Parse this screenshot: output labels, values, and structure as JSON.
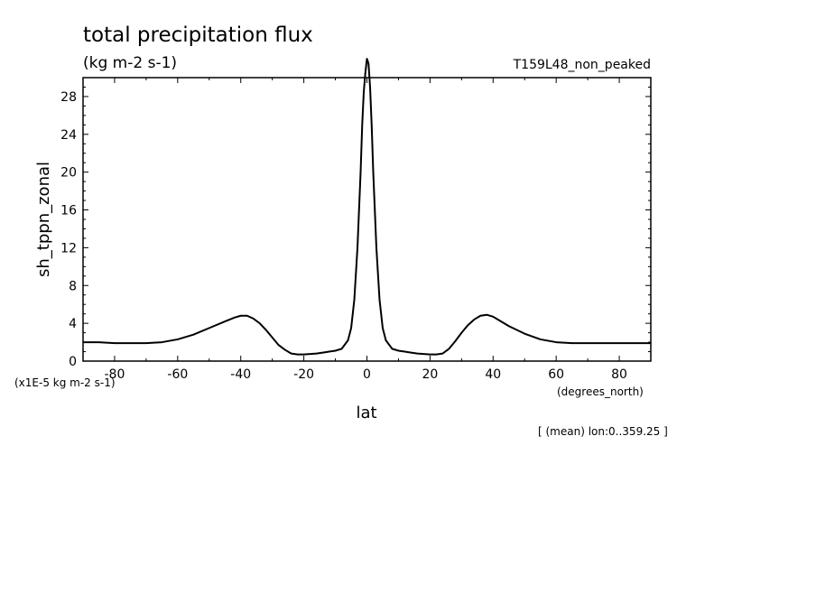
{
  "title": "total precipitation flux",
  "units": "(kg m-2 s-1)",
  "run_label": "T159L48_non_peaked",
  "y_axis_label": "sh_tppn_zonal",
  "y_scale_note": "(x1E-5 kg m-2 s-1)",
  "x_axis_label": "lat",
  "x_units_label": "(degrees_north)",
  "footer_note": "[ (mean) lon:0..359.25 ]",
  "chart_data": {
    "type": "line",
    "xlim": [
      -90,
      90
    ],
    "ylim": [
      0,
      30
    ],
    "x_ticks": [
      -80,
      -60,
      -40,
      -20,
      0,
      20,
      40,
      60,
      80
    ],
    "x_tick_labels": [
      "-80",
      "-60",
      "-40",
      "-20",
      "0",
      "20",
      "40",
      "60",
      "80"
    ],
    "y_ticks": [
      0,
      4,
      8,
      12,
      16,
      20,
      24,
      28
    ],
    "y_tick_labels": [
      "0",
      "4",
      "8",
      "12",
      "16",
      "20",
      "24",
      "28"
    ],
    "series": [
      {
        "color": "#000000",
        "x": [
          -90,
          -85,
          -80,
          -75,
          -70,
          -65,
          -60,
          -55,
          -50,
          -45,
          -42,
          -40,
          -38,
          -36,
          -34,
          -32,
          -30,
          -28,
          -26,
          -24,
          -22,
          -20,
          -18,
          -16,
          -14,
          -12,
          -10,
          -8,
          -6,
          -5,
          -4,
          -3,
          -2,
          -1.5,
          -1,
          -0.5,
          0,
          0.5,
          1,
          1.5,
          2,
          3,
          4,
          5,
          6,
          8,
          10,
          12,
          14,
          16,
          18,
          20,
          22,
          24,
          26,
          28,
          30,
          32,
          34,
          36,
          38,
          40,
          42,
          45,
          50,
          55,
          60,
          65,
          70,
          75,
          80,
          85,
          90
        ],
        "y": [
          2.0,
          2.0,
          1.9,
          1.9,
          1.9,
          2.0,
          2.3,
          2.8,
          3.5,
          4.2,
          4.6,
          4.8,
          4.8,
          4.5,
          4.0,
          3.3,
          2.5,
          1.7,
          1.2,
          0.8,
          0.7,
          0.7,
          0.75,
          0.8,
          0.9,
          1.0,
          1.1,
          1.3,
          2.2,
          3.5,
          6.5,
          12.0,
          20.0,
          25.0,
          28.5,
          30.5,
          32.0,
          31.5,
          29.0,
          25.0,
          20.0,
          12.0,
          6.5,
          3.5,
          2.2,
          1.3,
          1.1,
          1.0,
          0.9,
          0.8,
          0.75,
          0.7,
          0.7,
          0.8,
          1.3,
          2.1,
          3.0,
          3.8,
          4.4,
          4.8,
          4.9,
          4.7,
          4.3,
          3.7,
          2.9,
          2.3,
          2.0,
          1.9,
          1.9,
          1.9,
          1.9,
          1.9,
          1.9
        ]
      }
    ]
  }
}
